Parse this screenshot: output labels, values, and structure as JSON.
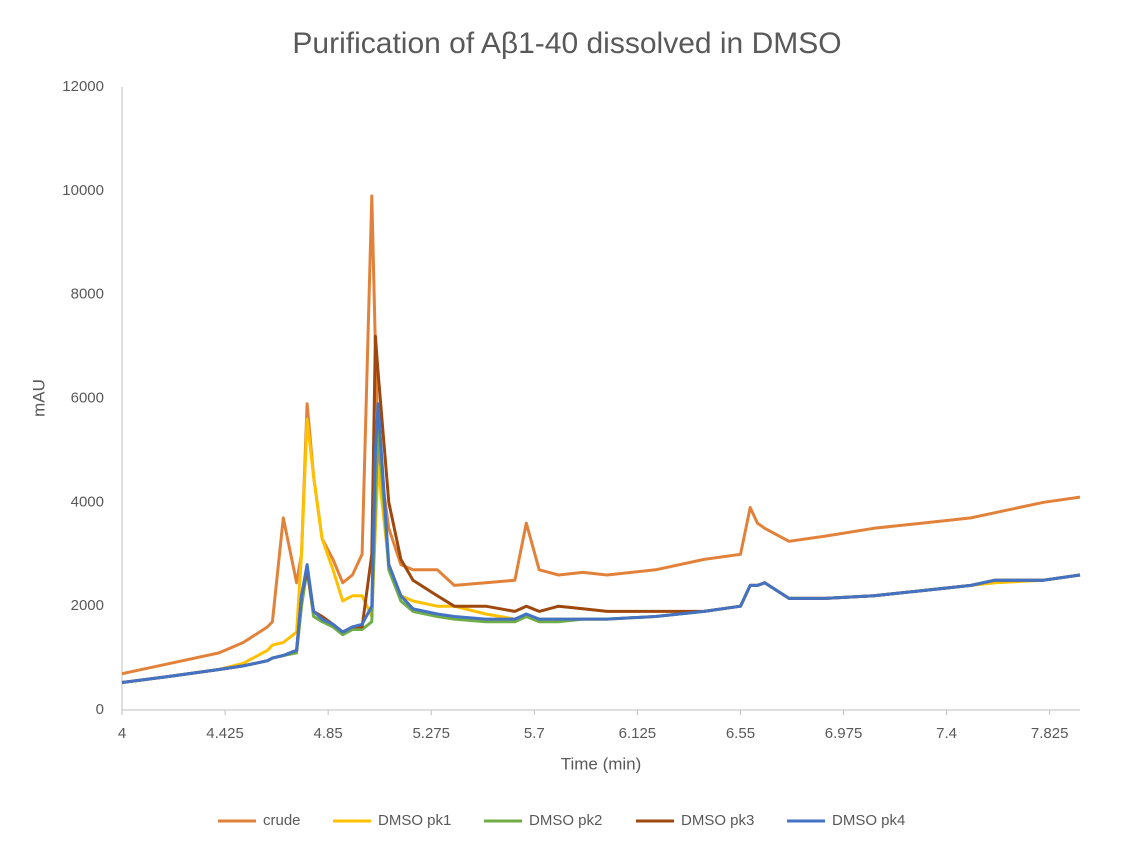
{
  "chart_data": {
    "type": "line",
    "title": "Purification of Aβ1-40 dissolved in DMSO",
    "x_label": "Time (min)",
    "y_label": "mAU",
    "xlim": [
      4,
      7.95
    ],
    "xticks": [
      4,
      4.425,
      4.85,
      5.275,
      5.7,
      6.125,
      6.55,
      6.975,
      7.4,
      7.825
    ],
    "ylim": [
      0,
      12000
    ],
    "yticks": [
      0,
      2000,
      4000,
      6000,
      8000,
      10000,
      12000
    ],
    "legend": "bottom",
    "grid": false,
    "x": [
      4.0,
      4.2,
      4.4,
      4.5,
      4.6,
      4.62,
      4.665,
      4.72,
      4.74,
      4.763,
      4.79,
      4.825,
      4.87,
      4.91,
      4.95,
      4.99,
      5.03,
      5.045,
      5.056,
      5.1,
      5.15,
      5.2,
      5.3,
      5.37,
      5.5,
      5.62,
      5.667,
      5.72,
      5.8,
      5.9,
      6.0,
      6.2,
      6.4,
      6.55,
      6.59,
      6.62,
      6.65,
      6.75,
      6.9,
      7.1,
      7.3,
      7.5,
      7.6,
      7.8,
      7.95
    ],
    "series": [
      {
        "name": "crude",
        "color": "#e2823a",
        "values": [
          700,
          900,
          1100,
          1300,
          1600,
          1700,
          3700,
          2450,
          3000,
          5900,
          4500,
          3300,
          2900,
          2450,
          2600,
          3000,
          9900,
          7000,
          5000,
          3500,
          2800,
          2700,
          2700,
          2400,
          2450,
          2500,
          3600,
          2700,
          2600,
          2650,
          2600,
          2700,
          2900,
          3000,
          3900,
          3600,
          3500,
          3250,
          3350,
          3500,
          3600,
          3700,
          3800,
          4000,
          4100
        ]
      },
      {
        "name": "DMSO pk1",
        "color": "#ffc000",
        "values": [
          530,
          650,
          780,
          900,
          1150,
          1250,
          1300,
          1500,
          3000,
          5600,
          4500,
          3300,
          2700,
          2100,
          2200,
          2200,
          1800,
          3500,
          4700,
          2800,
          2200,
          2100,
          2000,
          2000,
          1850,
          1750,
          1800,
          1750,
          1750,
          1750,
          1750,
          1800,
          1900,
          2000,
          2400,
          2400,
          2450,
          2150,
          2150,
          2200,
          2300,
          2400,
          2450,
          2500,
          2600
        ]
      },
      {
        "name": "DMSO pk2",
        "color": "#70ad47",
        "values": [
          530,
          650,
          780,
          850,
          950,
          1000,
          1050,
          1100,
          2000,
          2700,
          1800,
          1700,
          1600,
          1450,
          1550,
          1550,
          1700,
          4000,
          5500,
          2700,
          2100,
          1900,
          1800,
          1750,
          1700,
          1700,
          1800,
          1700,
          1700,
          1750,
          1750,
          1800,
          1900,
          2000,
          2400,
          2400,
          2450,
          2150,
          2150,
          2200,
          2300,
          2400,
          2500,
          2500,
          2600
        ]
      },
      {
        "name": "DMSO pk3",
        "color": "#9e480e",
        "values": [
          530,
          650,
          780,
          850,
          950,
          1000,
          1050,
          1150,
          2200,
          2700,
          1900,
          1800,
          1650,
          1500,
          1600,
          1600,
          3000,
          7200,
          6500,
          4000,
          2900,
          2500,
          2200,
          2000,
          2000,
          1900,
          2000,
          1900,
          2000,
          1950,
          1900,
          1900,
          1900,
          2000,
          2400,
          2400,
          2450,
          2150,
          2150,
          2200,
          2300,
          2400,
          2500,
          2500,
          2600
        ]
      },
      {
        "name": "DMSO pk4",
        "color": "#4472c4",
        "values": [
          530,
          650,
          780,
          850,
          950,
          1000,
          1050,
          1150,
          2200,
          2800,
          1900,
          1750,
          1650,
          1500,
          1600,
          1650,
          2000,
          5000,
          5900,
          2800,
          2200,
          1950,
          1850,
          1800,
          1750,
          1750,
          1850,
          1750,
          1750,
          1750,
          1750,
          1800,
          1900,
          2000,
          2400,
          2400,
          2450,
          2150,
          2150,
          2200,
          2300,
          2400,
          2500,
          2500,
          2600
        ]
      }
    ]
  }
}
